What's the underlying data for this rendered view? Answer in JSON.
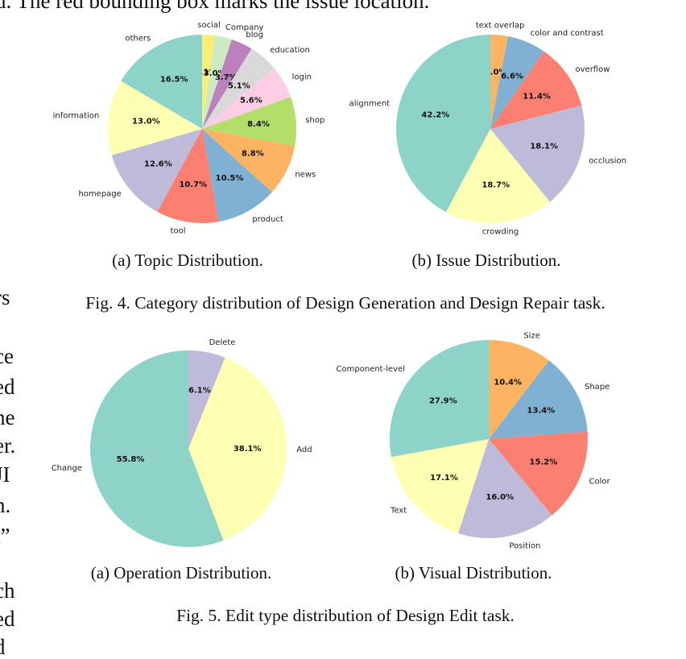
{
  "header_fragment": "d. The red bounding box marks the issue location.",
  "left_column_fragments": [
    "rs",
    "ce",
    "ed",
    "he",
    "er.",
    "JI",
    "n.",
    "t”",
    "ch",
    "ed",
    "d"
  ],
  "figure4": {
    "caption": "Fig. 4.  Category distribution of Design Generation and Design Repair task.",
    "subcaptions": [
      "(a)  Topic Distribution.",
      "(b)  Issue Distribution."
    ]
  },
  "figure5": {
    "caption": "Fig. 5.  Edit type distribution of Design Edit task.",
    "subcaptions": [
      "(a)  Operation Distribution.",
      "(b)  Visual Distribution."
    ]
  },
  "chart_data": [
    {
      "type": "pie",
      "title": "",
      "slices": [
        {
          "label": "social",
          "value": 2.1,
          "pct_label": "2.1%",
          "color": "#ffed6f"
        },
        {
          "label": "Company",
          "value": 3.0,
          "pct_label": "3.0%",
          "color": "#ccebc5"
        },
        {
          "label": "blog",
          "value": 3.7,
          "pct_label": "3.7%",
          "color": "#bc80bd"
        },
        {
          "label": "education",
          "value": 5.1,
          "pct_label": "5.1%",
          "color": "#d9d9d9"
        },
        {
          "label": "login",
          "value": 5.6,
          "pct_label": "5.6%",
          "color": "#fccde5"
        },
        {
          "label": "shop",
          "value": 8.4,
          "pct_label": "8.4%",
          "color": "#b3de69"
        },
        {
          "label": "news",
          "value": 8.8,
          "pct_label": "8.8%",
          "color": "#fdb462"
        },
        {
          "label": "product",
          "value": 10.5,
          "pct_label": "10.5%",
          "color": "#80b1d3"
        },
        {
          "label": "tool",
          "value": 10.7,
          "pct_label": "10.7%",
          "color": "#fb8072"
        },
        {
          "label": "homepage",
          "value": 12.6,
          "pct_label": "12.6%",
          "color": "#bebada"
        },
        {
          "label": "information",
          "value": 13.0,
          "pct_label": "13.0%",
          "color": "#ffffb3"
        },
        {
          "label": "others",
          "value": 16.5,
          "pct_label": "16.5%",
          "color": "#8dd3c7"
        }
      ]
    },
    {
      "type": "pie",
      "title": "",
      "slices": [
        {
          "label": "text overlap",
          "value": 3.0,
          "pct_label": "3.0%",
          "color": "#fdb462"
        },
        {
          "label": "color and contrast",
          "value": 6.6,
          "pct_label": "6.6%",
          "color": "#80b1d3"
        },
        {
          "label": "overflow",
          "value": 11.4,
          "pct_label": "11.4%",
          "color": "#fb8072"
        },
        {
          "label": "occlusion",
          "value": 18.1,
          "pct_label": "18.1%",
          "color": "#bebada"
        },
        {
          "label": "crowding",
          "value": 18.7,
          "pct_label": "18.7%",
          "color": "#ffffb3"
        },
        {
          "label": "alignment",
          "value": 42.2,
          "pct_label": "42.2%",
          "color": "#8dd3c7"
        }
      ]
    },
    {
      "type": "pie",
      "title": "",
      "slices": [
        {
          "label": "Delete",
          "value": 6.1,
          "pct_label": "6.1%",
          "color": "#bebada"
        },
        {
          "label": "Add",
          "value": 38.1,
          "pct_label": "38.1%",
          "color": "#ffffb3"
        },
        {
          "label": "Change",
          "value": 55.8,
          "pct_label": "55.8%",
          "color": "#8dd3c7"
        }
      ]
    },
    {
      "type": "pie",
      "title": "",
      "slices": [
        {
          "label": "Size",
          "value": 10.4,
          "pct_label": "10.4%",
          "color": "#fdb462"
        },
        {
          "label": "Shape",
          "value": 13.4,
          "pct_label": "13.4%",
          "color": "#80b1d3"
        },
        {
          "label": "Color",
          "value": 15.2,
          "pct_label": "15.2%",
          "color": "#fb8072"
        },
        {
          "label": "Position",
          "value": 16.0,
          "pct_label": "16.0%",
          "color": "#bebada"
        },
        {
          "label": "Text",
          "value": 17.1,
          "pct_label": "17.1%",
          "color": "#ffffb3"
        },
        {
          "label": "Component-level",
          "value": 27.9,
          "pct_label": "27.9%",
          "color": "#8dd3c7"
        }
      ]
    }
  ]
}
